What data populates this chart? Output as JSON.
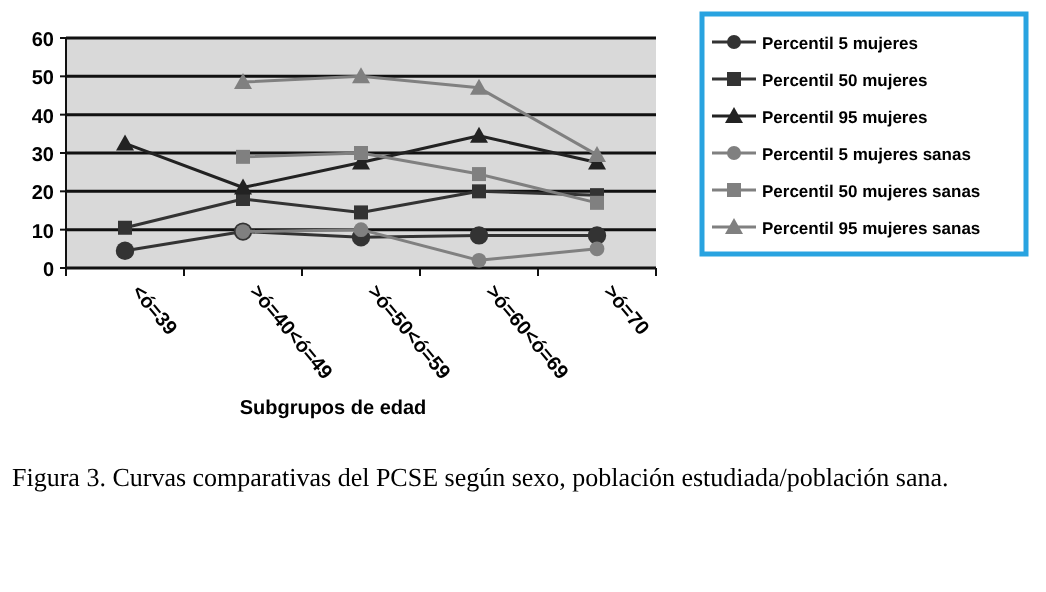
{
  "chart_data": {
    "type": "line",
    "xlabel": "Subgrupos de edad",
    "categories": [
      "<ó=39",
      ">ó=40<ó=49",
      ">ó=50<ó=59",
      ">ó=60<ó=69",
      ">ó=70"
    ],
    "ylim": [
      0,
      60
    ],
    "yticks": [
      0,
      10,
      20,
      30,
      40,
      50,
      60
    ],
    "grid": "y",
    "legend": "right",
    "series": [
      {
        "name": "Percentil 5 mujeres",
        "color": "#333333",
        "marker": "circle",
        "values": [
          4.5,
          9.5,
          8,
          8.5,
          8.5
        ]
      },
      {
        "name": "Percentil 50 mujeres",
        "color": "#333333",
        "marker": "square",
        "values": [
          10.5,
          18,
          14.5,
          20,
          19
        ]
      },
      {
        "name": "Percentil 95 mujeres",
        "color": "#222222",
        "marker": "triangle",
        "values": [
          32.5,
          21,
          27.5,
          34.5,
          27.5
        ]
      },
      {
        "name": "Percentil 5 mujeres sanas",
        "color": "#808080",
        "marker": "circle",
        "values": [
          null,
          9.5,
          10,
          2,
          5
        ]
      },
      {
        "name": "Percentil 50 mujeres sanas",
        "color": "#808080",
        "marker": "square",
        "values": [
          null,
          29,
          30,
          24.5,
          17
        ]
      },
      {
        "name": "Percentil 95 mujeres sanas",
        "color": "#808080",
        "marker": "triangle",
        "values": [
          null,
          48.5,
          50,
          47,
          29.5
        ]
      }
    ],
    "annotations": [
      "Figura 3. Curvas comparativas del PCSE según sexo, población estudiada/población sana."
    ]
  }
}
